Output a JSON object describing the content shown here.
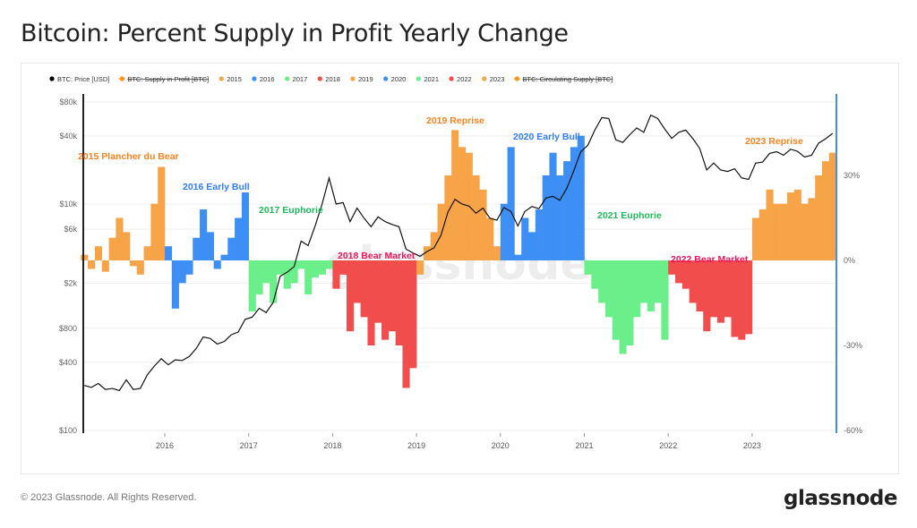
{
  "title": "Bitcoin: Percent Supply in Profit Yearly Change",
  "footer": "© 2023 Glassnode. All Rights Reserved.",
  "logo": "glassnode",
  "watermark": "glassnode",
  "chart_data": {
    "type": "bar+line",
    "legend_position": "top-left",
    "legend": [
      {
        "label": "BTC: Price [USD]",
        "color": "#000000",
        "struck": false
      },
      {
        "label": "BTC: Supply in Profit [BTC]",
        "color": "#f7931a",
        "struck": true
      },
      {
        "label": "2015",
        "color": "#f7a449",
        "struck": false
      },
      {
        "label": "2016",
        "color": "#3d8ff5",
        "struck": false
      },
      {
        "label": "2017",
        "color": "#6aef8a",
        "struck": false
      },
      {
        "label": "2018",
        "color": "#f24d4d",
        "struck": false
      },
      {
        "label": "2019",
        "color": "#f7a449",
        "struck": false
      },
      {
        "label": "2020",
        "color": "#3d8ff5",
        "struck": false
      },
      {
        "label": "2021",
        "color": "#6aef8a",
        "struck": false
      },
      {
        "label": "2022",
        "color": "#f24d4d",
        "struck": false
      },
      {
        "label": "2023",
        "color": "#f7a449",
        "struck": false
      },
      {
        "label": "BTC: Circulating Supply [BTC]",
        "color": "#f7931a",
        "struck": true
      }
    ],
    "x_ticks": [
      "2016",
      "2017",
      "2018",
      "2019",
      "2020",
      "2021",
      "2022",
      "2023"
    ],
    "left_axis": {
      "scale": "log",
      "ticks": [
        "$80k",
        "$40k",
        "$10k",
        "$6k",
        "$2k",
        "$800",
        "$400",
        "$100"
      ],
      "tick_values": [
        80000,
        40000,
        10000,
        6000,
        2000,
        800,
        400,
        100
      ],
      "range": [
        100,
        80000
      ]
    },
    "right_axis": {
      "ticks": [
        "30%",
        "0%",
        "-30%",
        "-60%"
      ],
      "tick_values": [
        30,
        0,
        -30,
        -60
      ],
      "range": [
        -60,
        57
      ]
    },
    "grid": true,
    "years": [
      2015,
      2016,
      2017,
      2018,
      2019,
      2020,
      2021,
      2022,
      2023
    ],
    "year_colors": [
      "#f7a449",
      "#3d8ff5",
      "#6aef8a",
      "#f24d4d",
      "#f7a449",
      "#3d8ff5",
      "#6aef8a",
      "#f24d4d",
      "#f7a449"
    ],
    "price_monthly": [
      [
        250,
        240,
        260,
        230,
        235,
        225,
        280,
        230,
        235,
        310,
        370,
        430
      ],
      [
        380,
        420,
        415,
        450,
        530,
        670,
        650,
        580,
        610,
        700,
        740,
        960
      ],
      [
        1000,
        1200,
        1100,
        1350,
        2300,
        2500,
        2800,
        4700,
        4300,
        6400,
        10000,
        17000
      ],
      [
        10000,
        10300,
        7000,
        9200,
        7500,
        6300,
        7700,
        7000,
        6600,
        6300,
        4000,
        3700
      ],
      [
        3450,
        3800,
        4100,
        5300,
        8500,
        11000,
        10000,
        9600,
        8300,
        9200,
        7500,
        7200
      ],
      [
        9300,
        8600,
        6400,
        8600,
        9500,
        9100,
        11300,
        11700,
        10800,
        13800,
        19700,
        29000
      ],
      [
        33000,
        45000,
        58000,
        57000,
        37000,
        35000,
        41000,
        47000,
        43000,
        61000,
        57000,
        46000
      ],
      [
        38000,
        43000,
        45000,
        38000,
        31000,
        20000,
        23000,
        20000,
        19400,
        20500,
        17000,
        16500
      ],
      [
        23000,
        23500,
        28000,
        29000,
        27000,
        30500,
        29200,
        26000,
        27000,
        34500,
        37700,
        42000
      ]
    ],
    "profit_change_pct_monthly": [
      [
        2,
        -3,
        5,
        -4,
        8,
        15,
        10,
        -2,
        -5,
        5,
        20,
        33
      ],
      [
        5,
        -17,
        -8,
        -5,
        8,
        18,
        10,
        -3,
        2,
        8,
        15,
        24
      ],
      [
        -18,
        -12,
        -8,
        -15,
        -5,
        -10,
        -8,
        -3,
        -12,
        -6,
        -5,
        -3
      ],
      [
        -10,
        -5,
        -25,
        -15,
        -20,
        -30,
        -22,
        -28,
        -25,
        -30,
        -45,
        -38
      ],
      [
        -5,
        5,
        10,
        20,
        30,
        46,
        40,
        38,
        30,
        25,
        15,
        5
      ],
      [
        20,
        40,
        2,
        15,
        10,
        18,
        30,
        38,
        30,
        35,
        40,
        44
      ],
      [
        -5,
        -10,
        -15,
        -20,
        -28,
        -33,
        -30,
        -20,
        -15,
        -18,
        -15,
        -28
      ],
      [
        -5,
        -8,
        -10,
        -15,
        -18,
        -25,
        -20,
        -22,
        -20,
        -27,
        -28,
        -26
      ],
      [
        15,
        18,
        25,
        20,
        20,
        24,
        25,
        20,
        22,
        30,
        35,
        38
      ]
    ],
    "annotations": [
      {
        "text": "2015 Plancher du Bear",
        "color": "#f5821f"
      },
      {
        "text": "2016 Early Bull",
        "color": "#2f7cf6"
      },
      {
        "text": "2017 Euphorie",
        "color": "#1fb85a"
      },
      {
        "text": "2018 Bear Market",
        "color": "#f0145a"
      },
      {
        "text": "2019 Reprise",
        "color": "#f5821f"
      },
      {
        "text": "2020 Early Bull",
        "color": "#2f7cf6"
      },
      {
        "text": "2021 Euphorie",
        "color": "#1fb85a"
      },
      {
        "text": "2022 Bear Market",
        "color": "#f0145a"
      },
      {
        "text": "2023 Reprise",
        "color": "#f5821f"
      }
    ]
  }
}
